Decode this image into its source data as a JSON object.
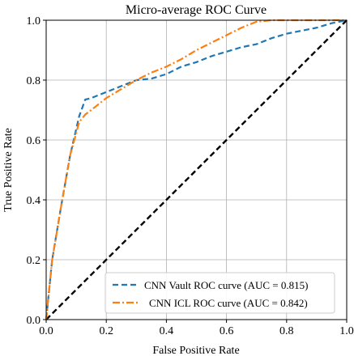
{
  "chart_data": {
    "type": "line",
    "title": "Micro-average ROC Curve",
    "xlabel": "False Positive Rate",
    "ylabel": "True Positive Rate",
    "xlim": [
      0.0,
      1.0
    ],
    "ylim": [
      0.0,
      1.0
    ],
    "xticks": [
      "0.0",
      "0.2",
      "0.4",
      "0.6",
      "0.8",
      "1.0"
    ],
    "yticks": [
      "0.0",
      "0.2",
      "0.4",
      "0.6",
      "0.8",
      "1.0"
    ],
    "grid": true,
    "legend_position": "lower-right",
    "series": [
      {
        "name": "CNN Vault ROC curve (AUC = 0.815)",
        "color": "#1f77b4",
        "dash": "dashed",
        "x": [
          0.0,
          0.02,
          0.05,
          0.08,
          0.11,
          0.13,
          0.15,
          0.2,
          0.25,
          0.3,
          0.35,
          0.4,
          0.45,
          0.5,
          0.55,
          0.6,
          0.65,
          0.7,
          0.75,
          0.8,
          0.85,
          0.9,
          0.95,
          1.0
        ],
        "y": [
          0.0,
          0.2,
          0.38,
          0.55,
          0.68,
          0.735,
          0.74,
          0.76,
          0.78,
          0.8,
          0.805,
          0.82,
          0.845,
          0.86,
          0.88,
          0.895,
          0.91,
          0.92,
          0.94,
          0.955,
          0.965,
          0.975,
          0.99,
          1.0
        ]
      },
      {
        "name": "CNN ICL ROC curve (AUC = 0.842)",
        "color": "#ff7f0e",
        "dash": "dashdot",
        "x": [
          0.0,
          0.02,
          0.05,
          0.08,
          0.11,
          0.13,
          0.15,
          0.2,
          0.25,
          0.3,
          0.35,
          0.4,
          0.45,
          0.5,
          0.55,
          0.6,
          0.65,
          0.7,
          0.75,
          0.8,
          0.85,
          0.9,
          0.95,
          1.0
        ],
        "y": [
          0.0,
          0.2,
          0.38,
          0.55,
          0.66,
          0.685,
          0.7,
          0.74,
          0.77,
          0.8,
          0.825,
          0.845,
          0.87,
          0.9,
          0.925,
          0.95,
          0.975,
          0.995,
          1.0,
          1.0,
          1.0,
          1.0,
          1.0,
          1.0
        ]
      },
      {
        "name": "",
        "color": "#000000",
        "dash": "dashed",
        "x": [
          0.0,
          1.0
        ],
        "y": [
          0.0,
          1.0
        ]
      }
    ]
  }
}
